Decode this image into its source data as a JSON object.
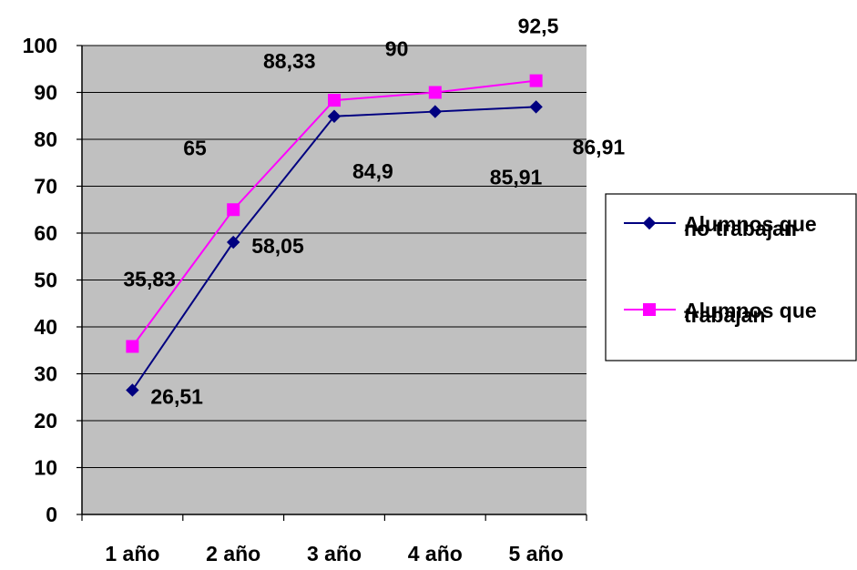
{
  "chart_data": {
    "type": "line",
    "categories": [
      "1 año",
      "2 año",
      "3 año",
      "4 año",
      "5 año"
    ],
    "ylim": [
      0,
      100
    ],
    "yticks": [
      "0",
      "10",
      "20",
      "30",
      "40",
      "50",
      "60",
      "70",
      "80",
      "90",
      "100"
    ],
    "grid": true,
    "legend_position": "right",
    "plot_background": "#c0c0c0",
    "series": [
      {
        "name_lines": [
          "Alumnos que",
          "no trabajan"
        ],
        "values": [
          26.51,
          58.05,
          84.9,
          85.91,
          86.91
        ],
        "labels": [
          "26,51",
          "58,05",
          "84,9",
          "85,91",
          "86,91"
        ],
        "color": "#000080",
        "marker": "diamond"
      },
      {
        "name_lines": [
          "Alumnos que",
          "trabajan"
        ],
        "values": [
          35.83,
          65,
          88.33,
          90,
          92.5
        ],
        "labels": [
          "35,83",
          "65",
          "88,33",
          "90",
          "92,5"
        ],
        "color": "#ff00ff",
        "marker": "square"
      }
    ]
  }
}
